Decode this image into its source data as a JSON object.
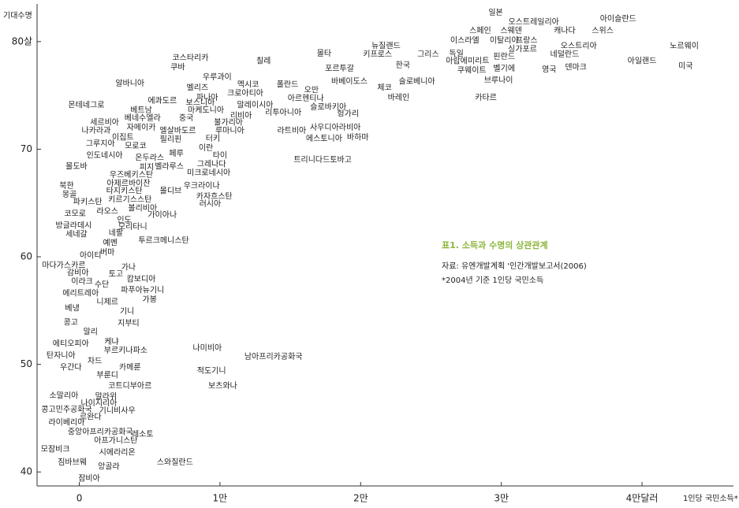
{
  "chart_data": {
    "type": "scatter",
    "y_label": "기대수명",
    "x_label": "1인당 국민소득*",
    "annotations": [
      "표1. 소득과 수명의 상관관계",
      "자료: 유엔개발계획 '인간개발보고서(2006)",
      "*2004년 기준 1인당 국민소득"
    ],
    "xlim": [
      -3000,
      46500
    ],
    "ylim": [
      38.7,
      83.5
    ],
    "xticks": [
      0,
      {
        "value": 10000,
        "label": "1만"
      },
      {
        "value": 20000,
        "label": "2만"
      },
      {
        "value": 30000,
        "label": "3만"
      },
      {
        "value": 40000,
        "label": "4만달러"
      }
    ],
    "yticks": [
      40,
      50,
      60,
      70,
      {
        "value": 80,
        "label": "80살"
      }
    ],
    "color": "#222222",
    "labels": [
      "일본",
      "오스트레일리아",
      "아이슬란드",
      "스페인",
      "스웨덴",
      "캐나다",
      "스위스",
      "이스라엘",
      "이탈리아",
      "프랑스",
      "뉴질랜드",
      "싱가포르",
      "오스트리아",
      "노르웨이",
      "코스타리카",
      "칠레",
      "몰타",
      "키프로스",
      "그리스",
      "독일",
      "네덜란드",
      "쿠바",
      "한국",
      "아랍에미리트",
      "핀란드",
      "벨기에",
      "영국",
      "덴마크",
      "아일랜드",
      "미국",
      "포르투갈",
      "쿠웨이트",
      "브루나이",
      "우루과이",
      "멕시코",
      "알바니아",
      "폴란드",
      "오만",
      "바베이도스",
      "체코",
      "슬로베니아",
      "벨리즈",
      "크로아티아",
      "파나마",
      "아르헨티나",
      "바레인",
      "카타르",
      "에콰도르",
      "보스니아",
      "말레이시아",
      "몬테네그로",
      "마케도니아",
      "슬로바키아",
      "베트남",
      "리투아니아",
      "헝가리",
      "중국",
      "리비아",
      "베네수엘라",
      "세르비아",
      "불가리아",
      "자메이카",
      "나카라과",
      "엘살바도르",
      "루마니아",
      "라트비아",
      "사우디아라비아",
      "이집트",
      "필리핀",
      "터키",
      "에스토니아",
      "바하마",
      "그루지아",
      "모로코",
      "이란",
      "페루",
      "인도네시아",
      "온두라스",
      "타이",
      "트리니다드토바고",
      "몰도바",
      "피지",
      "벨라루스",
      "그레나다",
      "우즈베키스탄",
      "미크로네시아",
      "아제르바이잔",
      "북한",
      "우크라이나",
      "타지키스탄",
      "몰디브",
      "몽골",
      "카자흐스탄",
      "키르기스스탄",
      "파키스탄",
      "볼리비아",
      "러시아",
      "라오스",
      "가이아나",
      "코모로",
      "인도",
      "방글라데시",
      "모리타니",
      "세네갈",
      "네팔",
      "예멘",
      "투르크메니스탄",
      "버마",
      "아이티",
      "마다가스카르",
      "가나",
      "감비아",
      "토고",
      "캄보디아",
      "이라크",
      "수단",
      "파푸아뉴기니",
      "에리트레아",
      "니제르",
      "가봉",
      "베냉",
      "기니",
      "콩고",
      "지부티",
      "말리",
      "케냐",
      "에티오피아",
      "부르키나파소",
      "나미비아",
      "탄자니아",
      "남아프리카공화국",
      "차드",
      "우간다",
      "카메룬",
      "적도기니",
      "부룬디",
      "코트디부아르",
      "보츠와나",
      "소말리아",
      "말라위",
      "나이지리아",
      "기니비사우",
      "콩고민주공화국",
      "르완다",
      "라이베리아",
      "중앙아프리카공화국",
      "레소토",
      "아프가니스탄",
      "모잠비크",
      "시에라리온",
      "짐바브웨",
      "앙골라",
      "스와질란드",
      "잠비아"
    ],
    "x": [
      29600,
      32300,
      38300,
      28500,
      30700,
      34500,
      37200,
      27400,
      30200,
      31800,
      21800,
      31500,
      35500,
      43000,
      7900,
      13100,
      17400,
      21200,
      24800,
      26800,
      34500,
      7000,
      23000,
      27600,
      30200,
      30200,
      33400,
      35300,
      40000,
      43100,
      18500,
      27900,
      29800,
      9800,
      12000,
      3600,
      14800,
      16500,
      19200,
      21700,
      24000,
      8400,
      11800,
      9100,
      16100,
      22700,
      28900,
      5900,
      8600,
      12500,
      500,
      9000,
      17700,
      4400,
      14500,
      19100,
      7600,
      11500,
      4500,
      1800,
      10600,
      4400,
      1200,
      7000,
      10700,
      15100,
      18200,
      3100,
      6500,
      9500,
      17400,
      19800,
      1500,
      4000,
      9000,
      6900,
      1800,
      5000,
      10000,
      17300,
      -200,
      4800,
      6400,
      9400,
      3700,
      9200,
      3500,
      -900,
      8700,
      3200,
      6500,
      -700,
      9600,
      3600,
      600,
      4500,
      9300,
      2000,
      5900,
      -300,
      3200,
      -400,
      3800,
      -200,
      2600,
      2200,
      6000,
      2000,
      800,
      -1100,
      3500,
      -100,
      2600,
      4400,
      200,
      1600,
      4500,
      100,
      2000,
      5000,
      -500,
      3400,
      -600,
      3500,
      800,
      2300,
      -600,
      3300,
      9100,
      -1300,
      13800,
      1100,
      -600,
      3600,
      9400,
      2000,
      3600,
      10200,
      -1100,
      1900,
      1400,
      2700,
      -900,
      800,
      -900,
      1500,
      4500,
      2600,
      -1700,
      2700,
      -500,
      2100,
      6800,
      700
    ],
    "values": [
      82.7,
      81.8,
      82.1,
      81.0,
      81.0,
      81.0,
      81.0,
      80.1,
      80.1,
      80.1,
      79.6,
      79.3,
      79.6,
      79.6,
      78.5,
      78.2,
      78.9,
      78.8,
      78.8,
      78.9,
      78.8,
      77.6,
      77.8,
      78.2,
      78.6,
      77.5,
      77.4,
      77.6,
      78.2,
      77.7,
      77.5,
      77.3,
      76.4,
      76.7,
      76.0,
      76.1,
      76.0,
      75.5,
      76.3,
      75.7,
      76.3,
      75.7,
      75.2,
      74.8,
      74.7,
      74.8,
      74.8,
      74.5,
      74.3,
      74.1,
      74.1,
      73.6,
      73.9,
      73.6,
      73.4,
      73.3,
      72.9,
      73.1,
      72.9,
      72.5,
      72.5,
      72.0,
      71.7,
      71.7,
      71.7,
      71.7,
      72.0,
      71.1,
      70.9,
      71.0,
      71.0,
      71.1,
      70.5,
      70.3,
      70.1,
      69.6,
      69.4,
      69.2,
      69.4,
      69.0,
      68.4,
      68.3,
      68.4,
      68.6,
      67.6,
      67.8,
      66.8,
      66.6,
      66.6,
      66.1,
      66.1,
      65.8,
      65.6,
      65.3,
      65.1,
      64.5,
      64.9,
      64.2,
      63.9,
      64.0,
      63.4,
      62.9,
      62.8,
      62.1,
      62.2,
      61.3,
      61.5,
      60.4,
      60.1,
      59.2,
      59.0,
      58.5,
      58.4,
      57.9,
      57.7,
      57.4,
      56.9,
      56.6,
      55.8,
      56.0,
      55.2,
      54.9,
      53.9,
      53.8,
      53.0,
      52.1,
      51.9,
      51.3,
      51.5,
      50.8,
      50.7,
      50.3,
      49.7,
      49.7,
      49.4,
      49.0,
      48.0,
      48.0,
      47.1,
      47.0,
      46.4,
      45.7,
      45.8,
      45.1,
      44.6,
      43.7,
      43.5,
      42.9,
      42.1,
      41.8,
      40.9,
      40.5,
      40.9,
      39.4
    ]
  }
}
